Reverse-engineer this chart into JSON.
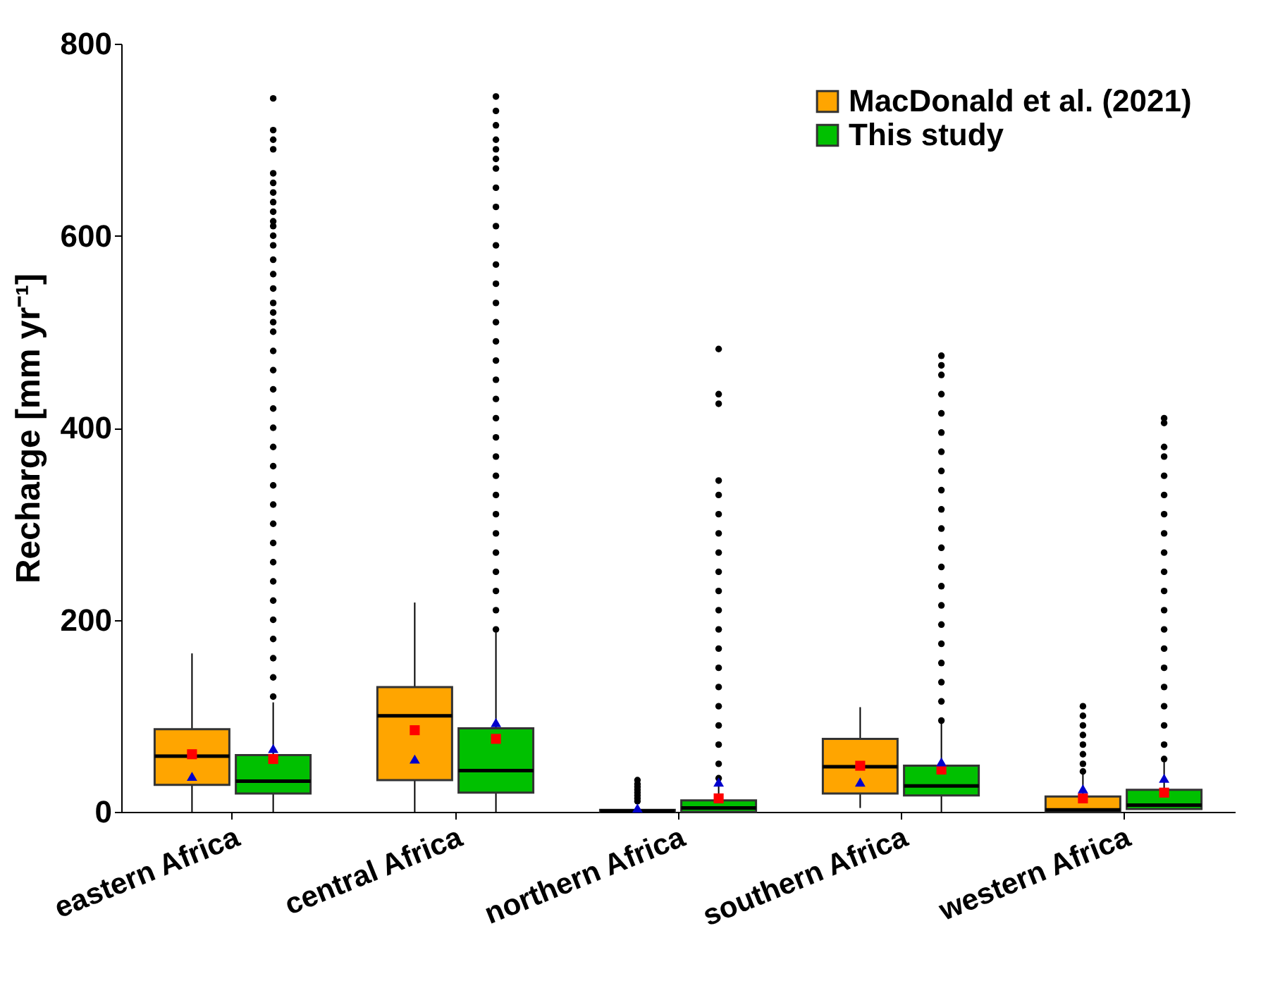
{
  "chart_data": {
    "type": "box",
    "ylabel": "Recharge [mm yr⁻¹]",
    "categories": [
      "eastern Africa",
      "central Africa",
      "northern Africa",
      "southern Africa",
      "western Africa"
    ],
    "ylim": [
      0,
      800
    ],
    "yticks": [
      0,
      200,
      400,
      600,
      800
    ],
    "legend": "top right",
    "series": [
      {
        "name": "MacDonald et al. (2021)",
        "type": "box",
        "color": "#ffa500",
        "boxes": [
          {
            "low": 0,
            "q1": 28,
            "median": 58,
            "q3": 86,
            "high": 165,
            "mean": 60
          },
          {
            "low": 0,
            "q1": 33,
            "median": 100,
            "q3": 130,
            "high": 218,
            "mean": 85
          },
          {
            "low": 0,
            "q1": 0,
            "median": 1,
            "q3": 2,
            "high": 4,
            "outliers": [
              11,
              14,
              17,
              20,
              23,
              26,
              29,
              33
            ]
          },
          {
            "low": 4,
            "q1": 19,
            "median": 47,
            "q3": 76,
            "high": 109,
            "mean": 48
          },
          {
            "low": 0,
            "q1": 0,
            "median": 2,
            "q3": 16,
            "high": 39,
            "mean": 14,
            "outliers": [
              42,
              50,
              60,
              70,
              80,
              90,
              100,
              110
            ]
          }
        ]
      },
      {
        "name": "This study",
        "type": "box",
        "color": "#00c000",
        "boxes": [
          {
            "low": 0,
            "q1": 19,
            "median": 32,
            "q3": 59,
            "high": 114,
            "mean": 55,
            "outliers": [
              120,
              140,
              160,
              180,
              200,
              220,
              240,
              260,
              280,
              300,
              320,
              340,
              360,
              380,
              400,
              420,
              440,
              460,
              480,
              500,
              510,
              520,
              530,
              545,
              560,
              575,
              590,
              600,
              610,
              615,
              625,
              635,
              645,
              655,
              665,
              690,
              700,
              710,
              743
            ]
          },
          {
            "low": 0,
            "q1": 20,
            "median": 43,
            "q3": 87,
            "high": 187,
            "mean": 76,
            "outliers": [
              190,
              210,
              230,
              250,
              270,
              290,
              310,
              330,
              350,
              370,
              390,
              410,
              430,
              450,
              470,
              490,
              510,
              530,
              550,
              570,
              590,
              610,
              630,
              650,
              670,
              680,
              690,
              700,
              715,
              730,
              745
            ]
          },
          {
            "low": 0,
            "q1": 0,
            "median": 4,
            "q3": 12,
            "high": 30,
            "mean": 14,
            "outliers": [
              35,
              50,
              70,
              90,
              110,
              130,
              150,
              170,
              190,
              210,
              230,
              250,
              270,
              290,
              310,
              330,
              345,
              425,
              435,
              482
            ]
          },
          {
            "low": 0,
            "q1": 17,
            "median": 27,
            "q3": 48,
            "high": 93,
            "mean": 44,
            "outliers": [
              95,
              115,
              135,
              155,
              175,
              195,
              215,
              235,
              255,
              275,
              295,
              315,
              335,
              355,
              375,
              395,
              415,
              435,
              455,
              465,
              475
            ]
          },
          {
            "low": 3,
            "q1": 3,
            "median": 7,
            "q3": 23,
            "high": 52,
            "mean": 20,
            "outliers": [
              55,
              70,
              90,
              110,
              130,
              150,
              170,
              190,
              210,
              230,
              250,
              270,
              290,
              310,
              330,
              350,
              370,
              380,
              405,
              410
            ]
          }
        ]
      },
      {
        "type": "scatter",
        "color": "#0000cc",
        "marker": "triangle",
        "x": [
          "eastern Africa",
          "central Africa",
          "northern Africa",
          "southern Africa",
          "western Africa"
        ],
        "values": [
          37,
          55,
          4,
          31,
          24
        ]
      },
      {
        "type": "scatter",
        "color": "#0000cc",
        "marker": "triangle",
        "x": [
          "eastern Africa",
          "central Africa",
          "northern Africa",
          "southern Africa",
          "western Africa"
        ],
        "values": [
          66,
          93,
          31,
          52,
          35
        ]
      }
    ]
  }
}
